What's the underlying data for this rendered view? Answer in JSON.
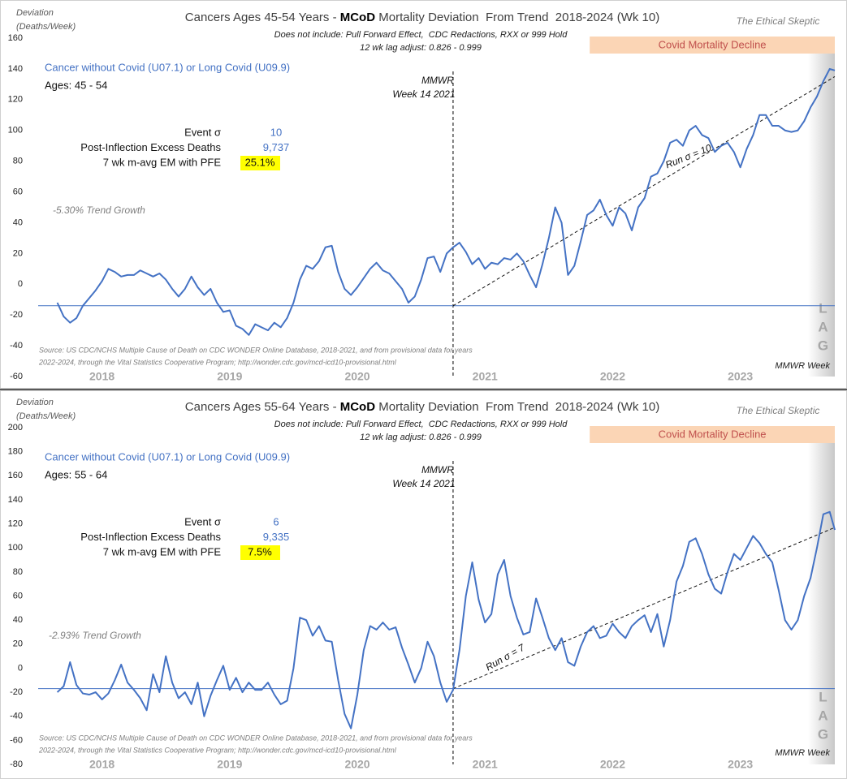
{
  "chart_data": [
    {
      "type": "line",
      "title": [
        "Cancers Ages 45-54 Years - ",
        "MCoD",
        " Mortality Deviation  From Trend  2018-2024 (Wk 10)"
      ],
      "subtitle": [
        "Does not include: Pull Forward Effect,  CDC Redactions, RXX or 999 Hold",
        "12 wk lag adjust: 0.826 - 0.999"
      ],
      "brand": "The Ethical Skeptic",
      "y_label": [
        "Deviation",
        "(Deaths/Week)"
      ],
      "x_label": "MMWR Week",
      "ages": "Ages: 45 - 54",
      "stats": [
        {
          "label": "Event σ",
          "value": 10
        },
        {
          "label": "Post-Inflection Excess Deaths",
          "value": 9737,
          "value_label": "9,737"
        },
        {
          "label": "7 wk m-avg EM with PFE",
          "value": 25.1,
          "value_label": "25.1%",
          "highlight": "#ffff00"
        }
      ],
      "trend_growth": "-5.30% Trend Growth",
      "event_annotation": [
        "MMWR",
        "Week 14 2021"
      ],
      "event_x": 2021.25,
      "baseline": -14,
      "trend": {
        "label": "Run σ = 10",
        "x": [
          2021.25,
          2024.24
        ],
        "values": [
          -14,
          135
        ]
      },
      "band": {
        "label": "Covid Mortality Decline",
        "x": [
          2022.32,
          2024.24
        ],
        "color": "#fbd5b5"
      },
      "lag": {
        "letters": [
          "L",
          "A",
          "G"
        ],
        "x": [
          2024.03,
          2024.24
        ]
      },
      "source": [
        "Source: US CDC/NCHS Multiple Cause of Death on CDC WONDER Online Database, 2018-2021, and from provisional data for years",
        "2022-2024, through the Vital Statistics Cooperative Program; http://wonder.cdc.gov/mcd-icd10-provisional.html"
      ],
      "xlim": [
        2018,
        2024.24
      ],
      "ylim": [
        -60,
        160
      ],
      "yticks": [
        160,
        140,
        120,
        100,
        80,
        60,
        40,
        20,
        0,
        -20,
        -40,
        -60
      ],
      "xticks": [
        {
          "value": 2018.5,
          "label": "2018"
        },
        {
          "value": 2019.5,
          "label": "2019"
        },
        {
          "value": 2020.5,
          "label": "2020"
        },
        {
          "value": 2021.5,
          "label": "2021"
        },
        {
          "value": 2022.5,
          "label": "2022"
        },
        {
          "value": 2023.5,
          "label": "2023"
        }
      ],
      "x": [
        2018.15,
        2018.2,
        2018.25,
        2018.3,
        2018.35,
        2018.4,
        2018.45,
        2018.5,
        2018.55,
        2018.6,
        2018.65,
        2018.7,
        2018.75,
        2018.8,
        2018.85,
        2018.9,
        2018.95,
        2019,
        2019.05,
        2019.1,
        2019.15,
        2019.2,
        2019.25,
        2019.3,
        2019.35,
        2019.4,
        2019.45,
        2019.5,
        2019.55,
        2019.6,
        2019.65,
        2019.7,
        2019.75,
        2019.8,
        2019.85,
        2019.9,
        2019.95,
        2020,
        2020.05,
        2020.1,
        2020.15,
        2020.2,
        2020.25,
        2020.3,
        2020.35,
        2020.4,
        2020.45,
        2020.5,
        2020.55,
        2020.6,
        2020.65,
        2020.7,
        2020.75,
        2020.8,
        2020.85,
        2020.9,
        2020.95,
        2021,
        2021.05,
        2021.1,
        2021.15,
        2021.2,
        2021.25,
        2021.3,
        2021.35,
        2021.4,
        2021.45,
        2021.5,
        2021.55,
        2021.6,
        2021.65,
        2021.7,
        2021.75,
        2021.8,
        2021.85,
        2021.9,
        2021.95,
        2022,
        2022.05,
        2022.1,
        2022.15,
        2022.2,
        2022.25,
        2022.3,
        2022.35,
        2022.4,
        2022.45,
        2022.5,
        2022.55,
        2022.6,
        2022.65,
        2022.7,
        2022.75,
        2022.8,
        2022.85,
        2022.9,
        2022.95,
        2023,
        2023.05,
        2023.1,
        2023.15,
        2023.2,
        2023.25,
        2023.3,
        2023.35,
        2023.4,
        2023.45,
        2023.5,
        2023.55,
        2023.6,
        2023.65,
        2023.7,
        2023.75,
        2023.8,
        2023.85,
        2023.9,
        2023.95,
        2024,
        2024.05,
        2024.1,
        2024.15,
        2024.2,
        2024.24
      ],
      "series": [
        {
          "name": "Cancer without Covid (U07.1) or Long Covid (U09.9)",
          "color": "#4472c4",
          "values": [
            -12,
            -21,
            -25,
            -22,
            -14,
            -9,
            -4,
            2,
            10,
            8,
            5,
            6,
            6,
            9,
            7,
            5,
            7,
            3,
            -3,
            -8,
            -3,
            5,
            -2,
            -7,
            -3,
            -12,
            -18,
            -17,
            -27,
            -29,
            -33,
            -26,
            -28,
            -30,
            -25,
            -28,
            -22,
            -12,
            3,
            12,
            10,
            15,
            24,
            25,
            8,
            -3,
            -7,
            -2,
            4,
            10,
            14,
            9,
            7,
            2,
            -3,
            -12,
            -8,
            3,
            17,
            18,
            8,
            20,
            24,
            27,
            21,
            13,
            17,
            10,
            14,
            13,
            17,
            16,
            20,
            15,
            6,
            -2,
            13,
            30,
            50,
            40,
            6,
            12,
            28,
            45,
            48,
            55,
            45,
            38,
            50,
            46,
            35,
            50,
            56,
            70,
            72,
            80,
            92,
            94,
            90,
            100,
            103,
            97,
            95,
            86,
            90,
            92,
            86,
            76,
            88,
            97,
            110,
            110,
            103,
            103,
            100,
            99,
            100,
            106,
            115,
            122,
            132,
            140,
            139
          ]
        }
      ]
    },
    {
      "type": "line",
      "title": [
        "Cancers Ages 55-64 Years - ",
        "MCoD",
        " Mortality Deviation  From Trend  2018-2024 (Wk 10)"
      ],
      "subtitle": [
        "Does not include: Pull Forward Effect,  CDC Redactions, RXX or 999 Hold",
        "12 wk lag adjust: 0.826 - 0.999"
      ],
      "brand": "The Ethical Skeptic",
      "y_label": [
        "Deviation",
        "(Deaths/Week)"
      ],
      "x_label": "MMWR Week",
      "ages": "Ages: 55 - 64",
      "stats": [
        {
          "label": "Event σ",
          "value": 6
        },
        {
          "label": "Post-Inflection Excess Deaths",
          "value": 9335,
          "value_label": "9,335"
        },
        {
          "label": "7 wk m-avg EM with PFE",
          "value": 7.5,
          "value_label": "7.5%",
          "highlight": "#ffff00"
        }
      ],
      "trend_growth": "-2.93% Trend Growth",
      "event_annotation": [
        "MMWR",
        "Week 14 2021"
      ],
      "event_x": 2021.25,
      "baseline": -17,
      "trend": {
        "label": "Run σ = 7",
        "x": [
          2021.25,
          2024.24
        ],
        "values": [
          -17,
          117
        ]
      },
      "band": {
        "label": "Covid Mortality Decline",
        "x": [
          2022.32,
          2024.24
        ],
        "color": "#fbd5b5"
      },
      "lag": {
        "letters": [
          "L",
          "A",
          "G"
        ],
        "x": [
          2024.03,
          2024.24
        ]
      },
      "source": [
        "Source: US CDC/NCHS Multiple Cause of Death on CDC WONDER Online Database, 2018-2021, and from provisional data for years",
        "2022-2024, through the Vital Statistics Cooperative Program; http://wonder.cdc.gov/mcd-icd10-provisional.html"
      ],
      "xlim": [
        2018,
        2024.24
      ],
      "ylim": [
        -80,
        200
      ],
      "yticks": [
        200,
        180,
        160,
        140,
        120,
        100,
        80,
        60,
        40,
        20,
        0,
        -20,
        -40,
        -60,
        -80
      ],
      "xticks": [
        {
          "value": 2018.5,
          "label": "2018"
        },
        {
          "value": 2019.5,
          "label": "2019"
        },
        {
          "value": 2020.5,
          "label": "2020"
        },
        {
          "value": 2021.5,
          "label": "2021"
        },
        {
          "value": 2022.5,
          "label": "2022"
        },
        {
          "value": 2023.5,
          "label": "2023"
        }
      ],
      "x": [
        2018.15,
        2018.2,
        2018.25,
        2018.3,
        2018.35,
        2018.4,
        2018.45,
        2018.5,
        2018.55,
        2018.6,
        2018.65,
        2018.7,
        2018.75,
        2018.8,
        2018.85,
        2018.9,
        2018.95,
        2019,
        2019.05,
        2019.1,
        2019.15,
        2019.2,
        2019.25,
        2019.3,
        2019.35,
        2019.4,
        2019.45,
        2019.5,
        2019.55,
        2019.6,
        2019.65,
        2019.7,
        2019.75,
        2019.8,
        2019.85,
        2019.9,
        2019.95,
        2020,
        2020.05,
        2020.1,
        2020.15,
        2020.2,
        2020.25,
        2020.3,
        2020.35,
        2020.4,
        2020.45,
        2020.5,
        2020.55,
        2020.6,
        2020.65,
        2020.7,
        2020.75,
        2020.8,
        2020.85,
        2020.9,
        2020.95,
        2021,
        2021.05,
        2021.1,
        2021.15,
        2021.2,
        2021.25,
        2021.3,
        2021.35,
        2021.4,
        2021.45,
        2021.5,
        2021.55,
        2021.6,
        2021.65,
        2021.7,
        2021.75,
        2021.8,
        2021.85,
        2021.9,
        2021.95,
        2022,
        2022.05,
        2022.1,
        2022.15,
        2022.2,
        2022.25,
        2022.3,
        2022.35,
        2022.4,
        2022.45,
        2022.5,
        2022.55,
        2022.6,
        2022.65,
        2022.7,
        2022.75,
        2022.8,
        2022.85,
        2022.9,
        2022.95,
        2023,
        2023.05,
        2023.1,
        2023.15,
        2023.2,
        2023.25,
        2023.3,
        2023.35,
        2023.4,
        2023.45,
        2023.5,
        2023.55,
        2023.6,
        2023.65,
        2023.7,
        2023.75,
        2023.8,
        2023.85,
        2023.9,
        2023.95,
        2024,
        2024.05,
        2024.1,
        2024.15,
        2024.2,
        2024.24
      ],
      "series": [
        {
          "name": "Cancer without Covid (U07.1) or Long Covid (U09.9)",
          "color": "#4472c4",
          "values": [
            -20,
            -15,
            5,
            -14,
            -21,
            -22,
            -20,
            -26,
            -21,
            -10,
            3,
            -12,
            -18,
            -25,
            -35,
            -5,
            -20,
            10,
            -12,
            -25,
            -20,
            -30,
            -12,
            -40,
            -23,
            -10,
            2,
            -18,
            -8,
            -20,
            -12,
            -18,
            -18,
            -12,
            -22,
            -30,
            -27,
            0,
            42,
            40,
            27,
            35,
            23,
            22,
            -10,
            -38,
            -50,
            -22,
            15,
            35,
            32,
            38,
            32,
            34,
            17,
            3,
            -12,
            0,
            22,
            10,
            -12,
            -28,
            -18,
            15,
            60,
            88,
            57,
            38,
            45,
            78,
            90,
            60,
            42,
            28,
            30,
            58,
            42,
            25,
            15,
            25,
            5,
            2,
            18,
            30,
            35,
            25,
            27,
            37,
            30,
            25,
            35,
            40,
            44,
            30,
            45,
            18,
            40,
            72,
            85,
            105,
            108,
            95,
            78,
            66,
            62,
            80,
            95,
            90,
            100,
            110,
            104,
            95,
            88,
            65,
            40,
            32,
            40,
            60,
            75,
            100,
            128,
            130,
            115
          ]
        }
      ]
    }
  ]
}
